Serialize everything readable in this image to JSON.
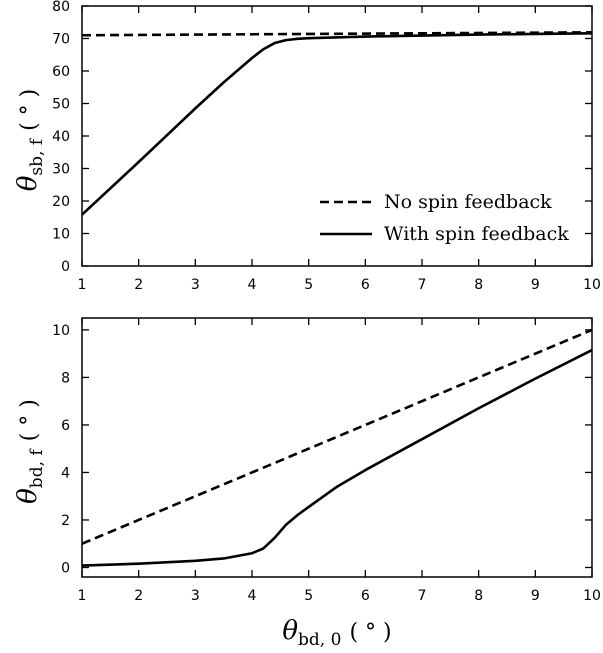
{
  "chart_data": [
    {
      "type": "line",
      "ylabel": {
        "symbol": "θ",
        "sub": "sb, f",
        "unit": "( ° )"
      },
      "xlim": [
        1,
        10
      ],
      "ylim": [
        0,
        80
      ],
      "xticks": [
        1,
        2,
        3,
        4,
        5,
        6,
        7,
        8,
        9,
        10
      ],
      "yticks": [
        0,
        10,
        20,
        30,
        40,
        50,
        60,
        70,
        80
      ],
      "legend": {
        "placement": "lower-right"
      },
      "series": [
        {
          "name": "No spin feedback",
          "style": "dashed",
          "x": [
            1,
            10
          ],
          "y": [
            71.0,
            71.9
          ]
        },
        {
          "name": "With spin feedback",
          "style": "solid",
          "x": [
            1,
            2,
            3,
            3.5,
            4,
            4.2,
            4.4,
            4.6,
            4.8,
            5,
            6,
            7,
            8,
            9,
            10
          ],
          "y": [
            15.8,
            32.0,
            48.5,
            56.5,
            64.0,
            66.7,
            68.6,
            69.5,
            69.9,
            70.1,
            70.6,
            70.9,
            71.2,
            71.4,
            71.6
          ]
        }
      ]
    },
    {
      "type": "line",
      "xlabel": {
        "symbol": "θ",
        "sub": "bd, 0",
        "unit": "( ° )"
      },
      "ylabel": {
        "symbol": "θ",
        "sub": "bd, f",
        "unit": "( ° )"
      },
      "xlim": [
        1,
        10
      ],
      "ylim": [
        -0.4,
        10.5
      ],
      "xticks": [
        1,
        2,
        3,
        4,
        5,
        6,
        7,
        8,
        9,
        10
      ],
      "yticks": [
        0,
        2,
        4,
        6,
        8,
        10
      ],
      "series": [
        {
          "name": "No spin feedback",
          "style": "dashed",
          "x": [
            1,
            10
          ],
          "y": [
            1.0,
            10.0
          ]
        },
        {
          "name": "With spin feedback",
          "style": "solid",
          "x": [
            1,
            2,
            3,
            3.5,
            4,
            4.2,
            4.4,
            4.6,
            4.8,
            5,
            5.5,
            6,
            7,
            8,
            9,
            10
          ],
          "y": [
            0.08,
            0.16,
            0.28,
            0.38,
            0.6,
            0.8,
            1.25,
            1.8,
            2.2,
            2.55,
            3.4,
            4.1,
            5.4,
            6.7,
            7.95,
            9.15
          ]
        }
      ]
    }
  ]
}
